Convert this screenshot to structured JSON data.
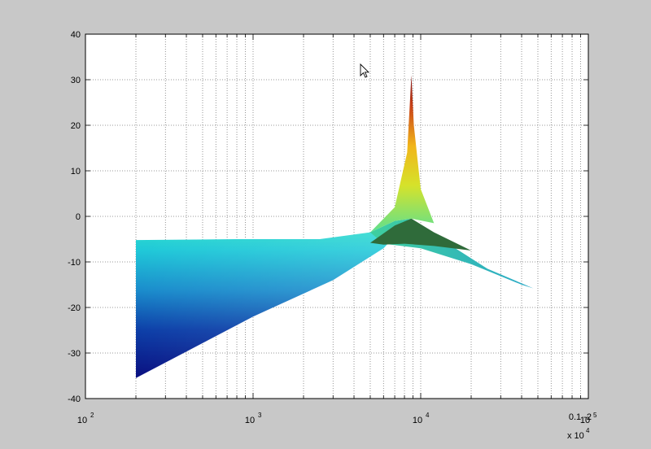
{
  "window": {
    "background": "#c8c8c8",
    "axes_background": "#ffffff"
  },
  "chart_data": {
    "type": "surface",
    "title": "",
    "xlabel": "",
    "ylabel": "",
    "x_scale": "log",
    "xlim": [
      100,
      100000
    ],
    "ylim": [
      -40,
      40
    ],
    "grid": true,
    "grid_style": "dotted",
    "y_ticks": [
      "40",
      "30",
      "20",
      "10",
      "0",
      "-10",
      "-20",
      "-30",
      "-40"
    ],
    "x_ticks": [
      {
        "base": "10",
        "exp": "2",
        "value": 100
      },
      {
        "base": "10",
        "exp": "3",
        "value": 1000
      },
      {
        "base": "10",
        "exp": "4",
        "value": 10000
      },
      {
        "base": "10",
        "exp": "5",
        "value": 100000
      }
    ],
    "x_multiplier": {
      "base": "x 10",
      "exp": "4"
    },
    "overlap_label": "0.1 -2",
    "colormap": "jet",
    "surface": {
      "left_edge_x": 200,
      "top_edge": [
        [
          200,
          -5.2
        ],
        [
          800,
          -5.0
        ],
        [
          2500,
          -5.0
        ],
        [
          5000,
          -3.5
        ],
        [
          7000,
          2
        ],
        [
          8300,
          14
        ],
        [
          8800,
          31
        ]
      ],
      "bottom_edge": [
        [
          200,
          -35.5
        ],
        [
          1000,
          -22
        ],
        [
          3000,
          -14
        ],
        [
          6000,
          -7
        ],
        [
          8800,
          -0.5
        ]
      ],
      "right_tail": [
        [
          8800,
          31
        ],
        [
          12000,
          -6
        ],
        [
          25000,
          -11.5
        ],
        [
          47000,
          -15.8
        ]
      ],
      "peak": {
        "x": 8800,
        "y": 31
      }
    }
  },
  "cursor": {
    "name": "mouse-pointer"
  }
}
